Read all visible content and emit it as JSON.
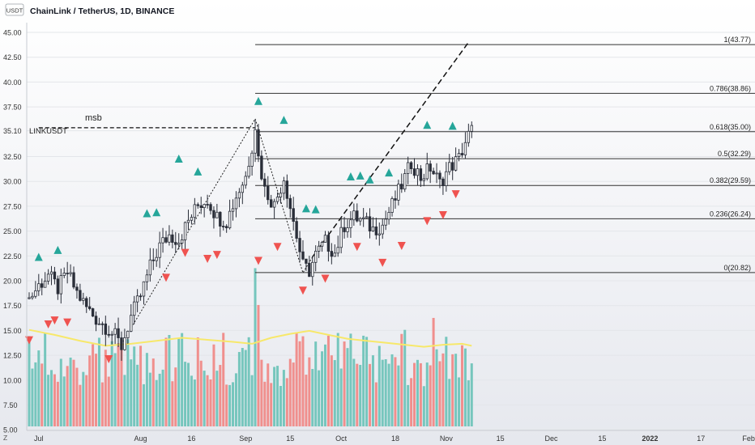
{
  "header": {
    "badge": "USDT",
    "title": "ChainLink / TetherUS, 1D, BINANCE"
  },
  "symbol_label": "LINKUSDT",
  "msb_label": "msb",
  "footer_z": "Z",
  "colors": {
    "up": "#26a69a",
    "down": "#ef5350",
    "candle": "#2a2e39",
    "volume_up": "#76c6bd",
    "volume_down": "#f08f8d",
    "volume_ma": "#f7e86a",
    "level_line": "#333333"
  },
  "chart_data": {
    "type": "candlestick",
    "ylim": [
      0,
      45
    ],
    "y_ticks": [
      "45.00",
      "42.50",
      "40.00",
      "37.50",
      "35.10",
      "32.50",
      "30.00",
      "27.50",
      "25.00",
      "22.50",
      "20.00",
      "17.50",
      "15.00",
      "12.50",
      "10.00",
      "7.50",
      "5.00"
    ],
    "y_tick_values": [
      45,
      42.5,
      40,
      37.5,
      35.1,
      32.5,
      30,
      27.5,
      25,
      22.5,
      20,
      17.5,
      15,
      12.5,
      10,
      7.5,
      5
    ],
    "x_ticks": [
      "Jul",
      "Aug",
      "16",
      "Sep",
      "15",
      "Oct",
      "18",
      "Nov",
      "15",
      "Dec",
      "15",
      "2022",
      "17",
      "Feb"
    ],
    "x_tick_days": [
      3,
      35,
      51,
      68,
      82,
      98,
      115,
      131,
      148,
      164,
      180,
      195,
      211,
      226
    ],
    "fib_levels": [
      {
        "label": "1(43.77)",
        "value": 43.77
      },
      {
        "label": "0.786(38.86)",
        "value": 38.86
      },
      {
        "label": "0.618(35.00)",
        "value": 35.0
      },
      {
        "label": "0.5(32.29)",
        "value": 32.29
      },
      {
        "label": "0.382(29.59)",
        "value": 29.59
      },
      {
        "label": "0.236(26.24)",
        "value": 26.24
      },
      {
        "label": "0(20.82)",
        "value": 20.82
      }
    ],
    "msb_level": 35.4,
    "price_path": [
      [
        0,
        18.2
      ],
      [
        3,
        19.5
      ],
      [
        6,
        20.6
      ],
      [
        9,
        19.2
      ],
      [
        12,
        20.8
      ],
      [
        15,
        18.8
      ],
      [
        18,
        17.3
      ],
      [
        21,
        16.2
      ],
      [
        24,
        15.4
      ],
      [
        27,
        14.4
      ],
      [
        29,
        13.4
      ],
      [
        32,
        16.4
      ],
      [
        35,
        18.5
      ],
      [
        38,
        21.4
      ],
      [
        41,
        23.5
      ],
      [
        44,
        24.6
      ],
      [
        47,
        24.1
      ],
      [
        50,
        26.0
      ],
      [
        53,
        27.6
      ],
      [
        56,
        28.2
      ],
      [
        59,
        26.4
      ],
      [
        62,
        26.0
      ],
      [
        65,
        28.5
      ],
      [
        68,
        30.5
      ],
      [
        70,
        33.6
      ],
      [
        71,
        35.7
      ],
      [
        72,
        32.4
      ],
      [
        74,
        29.2
      ],
      [
        77,
        27.6
      ],
      [
        80,
        30.4
      ],
      [
        83,
        26.0
      ],
      [
        86,
        21.5
      ],
      [
        88,
        21.0
      ],
      [
        90,
        22.6
      ],
      [
        93,
        23.9
      ],
      [
        96,
        22.8
      ],
      [
        99,
        25.6
      ],
      [
        102,
        26.4
      ],
      [
        105,
        26.0
      ],
      [
        108,
        25.2
      ],
      [
        111,
        25.6
      ],
      [
        114,
        27.6
      ],
      [
        117,
        29.6
      ],
      [
        120,
        31.9
      ],
      [
        123,
        30.4
      ],
      [
        126,
        31.4
      ],
      [
        129,
        29.8
      ],
      [
        132,
        31.4
      ],
      [
        135,
        32.3
      ],
      [
        137,
        34.0
      ],
      [
        139,
        35.2
      ]
    ],
    "volume_ma": [
      [
        0,
        9.7
      ],
      [
        8,
        9.2
      ],
      [
        16,
        8.6
      ],
      [
        24,
        8.1
      ],
      [
        32,
        8.3
      ],
      [
        40,
        8.6
      ],
      [
        48,
        8.9
      ],
      [
        56,
        8.7
      ],
      [
        64,
        8.5
      ],
      [
        70,
        8.3
      ],
      [
        76,
        8.9
      ],
      [
        82,
        9.3
      ],
      [
        88,
        9.6
      ],
      [
        94,
        9.2
      ],
      [
        100,
        8.8
      ],
      [
        106,
        8.6
      ],
      [
        112,
        8.4
      ],
      [
        118,
        8.2
      ],
      [
        124,
        8.0
      ],
      [
        130,
        8.2
      ],
      [
        136,
        8.3
      ],
      [
        139,
        8.1
      ]
    ],
    "markers_up": [
      [
        3,
        22.4
      ],
      [
        9,
        23.1
      ],
      [
        37,
        26.8
      ],
      [
        40,
        26.9
      ],
      [
        47,
        32.3
      ],
      [
        53,
        31.0
      ],
      [
        72,
        38.1
      ],
      [
        80,
        36.2
      ],
      [
        87,
        27.3
      ],
      [
        90,
        27.2
      ],
      [
        101,
        30.5
      ],
      [
        104,
        30.6
      ],
      [
        107,
        30.2
      ],
      [
        113,
        30.9
      ],
      [
        125,
        35.7
      ],
      [
        133,
        35.6
      ]
    ],
    "markers_down": [
      [
        0,
        14.0
      ],
      [
        6,
        15.6
      ],
      [
        8,
        16.0
      ],
      [
        12,
        15.8
      ],
      [
        25,
        12.1
      ],
      [
        43,
        20.3
      ],
      [
        49,
        22.8
      ],
      [
        56,
        22.2
      ],
      [
        59,
        22.6
      ],
      [
        72,
        22.0
      ],
      [
        78,
        23.4
      ],
      [
        86,
        19.0
      ],
      [
        93,
        20.2
      ],
      [
        103,
        23.4
      ],
      [
        111,
        21.8
      ],
      [
        117,
        23.5
      ],
      [
        125,
        26.0
      ],
      [
        130,
        26.6
      ],
      [
        134,
        28.7
      ]
    ],
    "dotted_path": [
      [
        29,
        13.6
      ],
      [
        71,
        36.3
      ],
      [
        86,
        20.8
      ],
      [
        89,
        22.4
      ]
    ],
    "dashed_projection": [
      [
        89,
        22.4
      ],
      [
        138,
        44.0
      ]
    ],
    "series": [
      {
        "name": "LINKUSDT",
        "type": "candlestick"
      },
      {
        "type": "volume"
      },
      {
        "type": "line"
      }
    ]
  }
}
